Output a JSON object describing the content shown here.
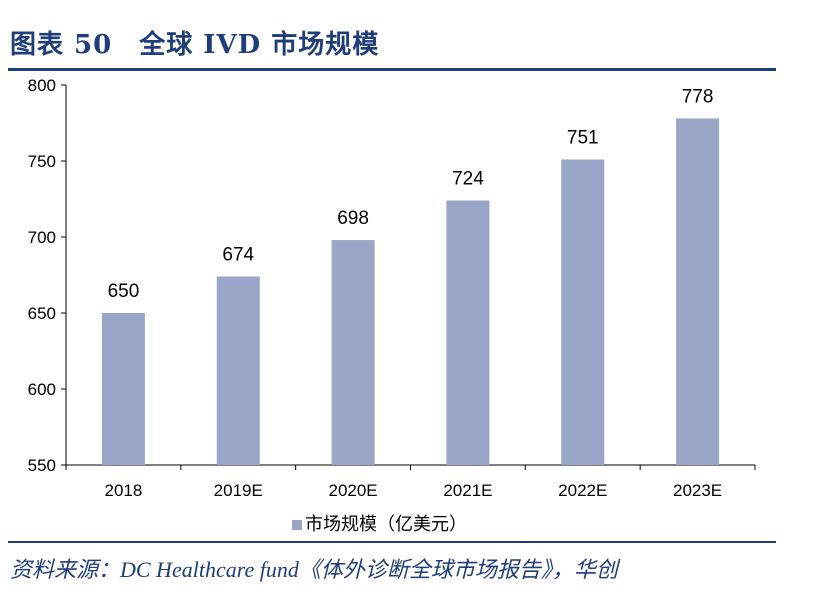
{
  "header": {
    "figure_title": "图表 50　全球 IVD 市场规模"
  },
  "footer": {
    "source": "资料来源：DC Healthcare fund《体外诊断全球市场报告》，华创"
  },
  "legend": {
    "label": "市场规模（亿美元）"
  },
  "chart_data": {
    "type": "bar",
    "categories": [
      "2018",
      "2019E",
      "2020E",
      "2021E",
      "2022E",
      "2023E"
    ],
    "series": [
      {
        "name": "市场规模（亿美元）",
        "values": [
          650,
          674,
          698,
          724,
          751,
          778
        ]
      }
    ],
    "data_labels": [
      "650",
      "674",
      "698",
      "724",
      "751",
      "778"
    ],
    "yticks": [
      550,
      600,
      650,
      700,
      750,
      800
    ],
    "ylim": [
      550,
      800
    ],
    "title": "",
    "xlabel": "",
    "ylabel": "",
    "grid": false,
    "legend_position": "bottom",
    "colors": {
      "bar": "#9aa6c8",
      "axis": "#000000",
      "title": "#1f3d7a"
    }
  }
}
